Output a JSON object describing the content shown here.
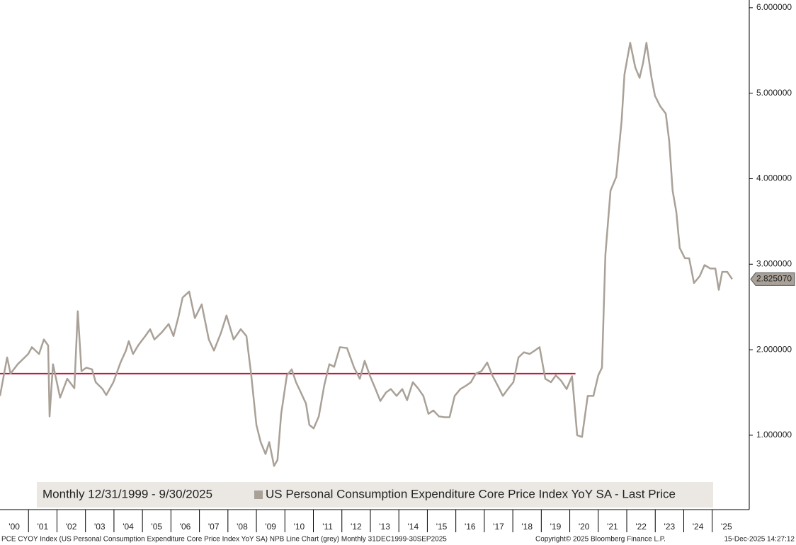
{
  "chart_data": {
    "type": "line",
    "legend_period": "Monthly 12/31/1999 - 9/30/2025",
    "series": [
      {
        "name": "US Personal Consumption Expenditure Core Price Index YoY SA - Last Price",
        "color": "#a9a198",
        "x": [
          2000.0,
          2000.25,
          2000.37,
          2000.62,
          2000.99,
          2001.12,
          2001.37,
          2001.54,
          2001.69,
          2001.74,
          2001.86,
          2002.11,
          2002.36,
          2002.61,
          2002.73,
          2002.86,
          2003.03,
          2003.23,
          2003.36,
          2003.6,
          2003.73,
          2003.98,
          2004.23,
          2004.42,
          2004.52,
          2004.67,
          2004.85,
          2005.1,
          2005.27,
          2005.42,
          2005.67,
          2005.92,
          2006.09,
          2006.26,
          2006.41,
          2006.64,
          2006.84,
          2007.08,
          2007.33,
          2007.51,
          2007.76,
          2007.95,
          2008.2,
          2008.45,
          2008.65,
          2008.82,
          2009.0,
          2009.15,
          2009.32,
          2009.45,
          2009.62,
          2009.74,
          2009.87,
          2010.07,
          2010.24,
          2010.39,
          2010.56,
          2010.74,
          2010.86,
          2011.01,
          2011.19,
          2011.38,
          2011.56,
          2011.73,
          2011.93,
          2012.18,
          2012.43,
          2012.63,
          2012.8,
          2012.98,
          2013.17,
          2013.35,
          2013.55,
          2013.72,
          2013.92,
          2014.12,
          2014.29,
          2014.49,
          2014.67,
          2014.86,
          2015.04,
          2015.21,
          2015.41,
          2015.61,
          2015.78,
          2015.96,
          2016.16,
          2016.36,
          2016.53,
          2016.7,
          2016.9,
          2017.1,
          2017.28,
          2017.47,
          2017.65,
          2017.85,
          2018.02,
          2018.2,
          2018.39,
          2018.59,
          2018.77,
          2018.94,
          2019.14,
          2019.34,
          2019.51,
          2019.69,
          2019.89,
          2020.08,
          2020.26,
          2020.43,
          2020.63,
          2020.83,
          2021.0,
          2021.13,
          2021.25,
          2021.43,
          2021.63,
          2021.82,
          2021.92,
          2022.12,
          2022.3,
          2022.45,
          2022.57,
          2022.69,
          2022.87,
          2022.99,
          2023.17,
          2023.37,
          2023.49,
          2023.61,
          2023.74,
          2023.86,
          2024.04,
          2024.19,
          2024.36,
          2024.56,
          2024.73,
          2024.93,
          2025.11,
          2025.23,
          2025.35,
          2025.53,
          2025.7
        ],
        "values": [
          1.46,
          1.91,
          1.72,
          1.83,
          1.95,
          2.03,
          1.95,
          2.12,
          2.05,
          1.22,
          1.83,
          1.44,
          1.66,
          1.55,
          2.45,
          1.75,
          1.79,
          1.77,
          1.62,
          1.54,
          1.47,
          1.62,
          1.85,
          1.99,
          2.1,
          1.95,
          2.05,
          2.16,
          2.24,
          2.12,
          2.2,
          2.3,
          2.16,
          2.38,
          2.61,
          2.68,
          2.37,
          2.53,
          2.12,
          1.99,
          2.2,
          2.4,
          2.12,
          2.24,
          2.16,
          1.7,
          1.12,
          0.92,
          0.78,
          0.92,
          0.64,
          0.71,
          1.25,
          1.7,
          1.77,
          1.62,
          1.5,
          1.37,
          1.12,
          1.08,
          1.22,
          1.58,
          1.83,
          1.8,
          2.03,
          2.02,
          1.79,
          1.66,
          1.87,
          1.7,
          1.55,
          1.4,
          1.5,
          1.54,
          1.46,
          1.54,
          1.41,
          1.62,
          1.55,
          1.46,
          1.25,
          1.29,
          1.22,
          1.21,
          1.21,
          1.46,
          1.54,
          1.58,
          1.62,
          1.72,
          1.75,
          1.85,
          1.7,
          1.58,
          1.46,
          1.55,
          1.62,
          1.91,
          1.97,
          1.95,
          1.99,
          2.03,
          1.66,
          1.62,
          1.7,
          1.64,
          1.54,
          1.69,
          1.0,
          0.98,
          1.46,
          1.46,
          1.7,
          1.79,
          3.11,
          3.86,
          4.02,
          4.68,
          5.22,
          5.59,
          5.3,
          5.18,
          5.35,
          5.59,
          5.18,
          4.97,
          4.85,
          4.76,
          4.44,
          3.86,
          3.61,
          3.19,
          3.07,
          3.07,
          2.78,
          2.86,
          2.99,
          2.95,
          2.95,
          2.7,
          2.91,
          2.91,
          2.82507
        ]
      }
    ],
    "last_price": {
      "value": 2.82507,
      "label": "2.825070"
    },
    "reference_line": {
      "value": 1.72,
      "x_end": 2020.2,
      "color": "#c0143c"
    },
    "xlim": [
      2000,
      2026.3
    ],
    "xticks": [
      {
        "value": 2000,
        "label": "'00"
      },
      {
        "value": 2001,
        "label": "'01"
      },
      {
        "value": 2002,
        "label": "'02"
      },
      {
        "value": 2003,
        "label": "'03"
      },
      {
        "value": 2004,
        "label": "'04"
      },
      {
        "value": 2005,
        "label": "'05"
      },
      {
        "value": 2006,
        "label": "'06"
      },
      {
        "value": 2007,
        "label": "'07"
      },
      {
        "value": 2008,
        "label": "'08"
      },
      {
        "value": 2009,
        "label": "'09"
      },
      {
        "value": 2010,
        "label": "'10"
      },
      {
        "value": 2011,
        "label": "'11"
      },
      {
        "value": 2012,
        "label": "'12"
      },
      {
        "value": 2013,
        "label": "'13"
      },
      {
        "value": 2014,
        "label": "'14"
      },
      {
        "value": 2015,
        "label": "'15"
      },
      {
        "value": 2016,
        "label": "'16"
      },
      {
        "value": 2017,
        "label": "'17"
      },
      {
        "value": 2018,
        "label": "'18"
      },
      {
        "value": 2019,
        "label": "'19"
      },
      {
        "value": 2020,
        "label": "'20"
      },
      {
        "value": 2021,
        "label": "'21"
      },
      {
        "value": 2022,
        "label": "'22"
      },
      {
        "value": 2023,
        "label": "'23"
      },
      {
        "value": 2024,
        "label": "'24"
      },
      {
        "value": 2025,
        "label": "'25"
      }
    ],
    "ylim": [
      0.13,
      6.09
    ],
    "yticks": [
      {
        "value": 1,
        "label": "1.000000"
      },
      {
        "value": 2,
        "label": "2.000000"
      },
      {
        "value": 3,
        "label": "3.000000"
      },
      {
        "value": 4,
        "label": "4.000000"
      },
      {
        "value": 5,
        "label": "5.000000"
      },
      {
        "value": 6,
        "label": "6.000000"
      }
    ],
    "footer": {
      "description": "PCE CYOY Index (US Personal Consumption Expenditure Core Price Index YoY SA) NPB Line Chart (grey) Monthly 31DEC1999-30SEP2025",
      "copyright": "Copyright© 2025 Bloomberg Finance L.P.",
      "timestamp": "15-Dec-2025 14:27:12"
    }
  }
}
